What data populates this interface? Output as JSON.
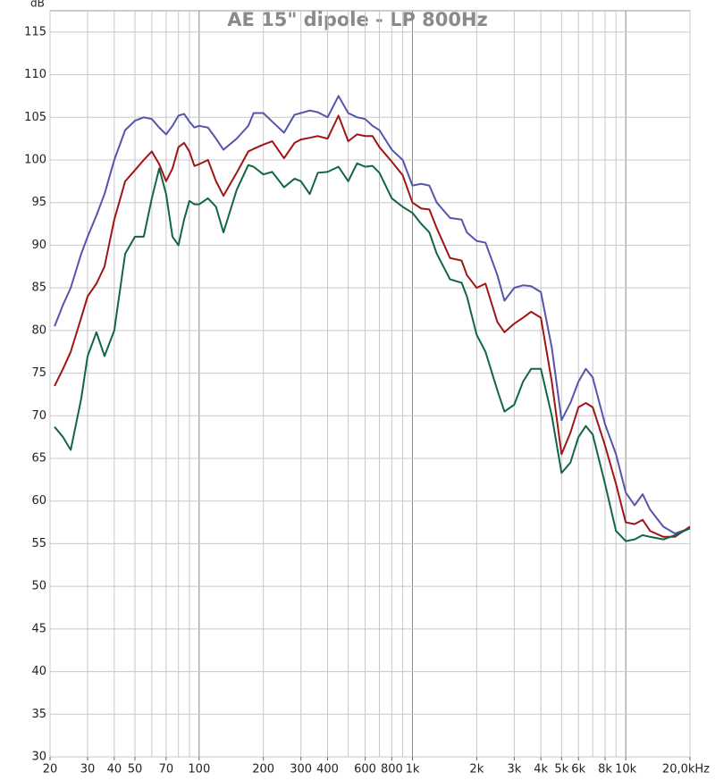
{
  "chart_data": {
    "type": "line",
    "title": "AE 15\" dipole - LP 800Hz",
    "ylabel": "dB",
    "xscale": "log",
    "grid": true,
    "xlim": [
      20,
      20000
    ],
    "ylim": [
      30,
      117.5
    ],
    "xticks": [
      20,
      30,
      40,
      50,
      70,
      100,
      200,
      300,
      400,
      600,
      800,
      {
        "value": 1000,
        "label": "1k"
      },
      {
        "value": 2000,
        "label": "2k"
      },
      {
        "value": 3000,
        "label": "3k"
      },
      {
        "value": 4000,
        "label": "4k"
      },
      {
        "value": 5000,
        "label": "5k"
      },
      {
        "value": 6000,
        "label": "6k"
      },
      {
        "value": 8000,
        "label": "8k"
      },
      {
        "value": 10000,
        "label": "10k"
      },
      {
        "value": 20000,
        "label": "20,0kHz"
      }
    ],
    "xgrid": [
      20,
      30,
      40,
      50,
      60,
      70,
      80,
      90,
      100,
      200,
      300,
      400,
      500,
      600,
      700,
      800,
      900,
      1000,
      2000,
      3000,
      4000,
      5000,
      6000,
      7000,
      8000,
      9000,
      10000,
      20000
    ],
    "yticks": [
      30,
      35,
      40,
      45,
      50,
      55,
      60,
      65,
      70,
      75,
      80,
      85,
      90,
      95,
      100,
      105,
      110,
      115
    ],
    "x": [
      21,
      23,
      25,
      28,
      30,
      33,
      36,
      40,
      45,
      50,
      55,
      60,
      65,
      70,
      75,
      80,
      85,
      90,
      95,
      100,
      110,
      120,
      130,
      150,
      170,
      180,
      200,
      220,
      250,
      280,
      300,
      330,
      360,
      400,
      450,
      500,
      550,
      600,
      650,
      700,
      800,
      900,
      1000,
      1100,
      1200,
      1300,
      1500,
      1700,
      1800,
      2000,
      2200,
      2500,
      2700,
      3000,
      3300,
      3600,
      4000,
      4500,
      5000,
      5500,
      6000,
      6500,
      7000,
      8000,
      9000,
      10000,
      11000,
      12000,
      13000,
      15000,
      17000,
      20000
    ],
    "series": [
      {
        "color": "#5555aa",
        "values": [
          80.5,
          83,
          85,
          89,
          91,
          93.5,
          96,
          100,
          103.5,
          104.6,
          105,
          104.8,
          103.8,
          103,
          104,
          105.2,
          105.4,
          104.5,
          103.8,
          104,
          103.8,
          102.5,
          101.2,
          102.5,
          104,
          105.5,
          105.5,
          104.5,
          103.2,
          105.3,
          105.5,
          105.8,
          105.6,
          105,
          107.5,
          105.5,
          105,
          104.8,
          104,
          103.5,
          101.2,
          100,
          97,
          97.2,
          97,
          95,
          93.2,
          93,
          91.5,
          90.5,
          90.3,
          86.5,
          83.5,
          85,
          85.3,
          85.2,
          84.5,
          78,
          69.5,
          71.5,
          74,
          75.5,
          74.5,
          69,
          65.5,
          61,
          59.5,
          60.8,
          59,
          57,
          56.2,
          56.8
        ]
      },
      {
        "color": "#a01515",
        "values": [
          73.5,
          75.5,
          77.5,
          81.5,
          84,
          85.5,
          87.5,
          93,
          97.5,
          98.8,
          100,
          101,
          99.5,
          97.5,
          99,
          101.5,
          102,
          101,
          99.3,
          99.5,
          100,
          97.5,
          95.8,
          98.5,
          101,
          101.3,
          101.8,
          102.2,
          100.2,
          102,
          102.4,
          102.6,
          102.8,
          102.5,
          105.2,
          102.2,
          103,
          102.8,
          102.8,
          101.5,
          99.8,
          98.2,
          95,
          94.3,
          94.2,
          92,
          88.5,
          88.2,
          86.5,
          85,
          85.5,
          81,
          79.8,
          80.8,
          81.5,
          82.2,
          81.5,
          74,
          65.5,
          68,
          71,
          71.5,
          71,
          66.5,
          62,
          57.5,
          57.3,
          57.8,
          56.5,
          55.8,
          55.8,
          57
        ]
      },
      {
        "color": "#116644",
        "values": [
          68.7,
          67.5,
          66,
          72,
          77,
          79.8,
          77,
          80,
          89,
          91,
          91,
          95.5,
          99,
          96,
          91,
          90,
          93,
          95.2,
          94.8,
          94.8,
          95.5,
          94.5,
          91.5,
          96.5,
          99.4,
          99.2,
          98.3,
          98.6,
          96.8,
          97.8,
          97.5,
          96,
          98.5,
          98.6,
          99.2,
          97.5,
          99.6,
          99.2,
          99.3,
          98.5,
          95.5,
          94.5,
          93.8,
          92.5,
          91.5,
          89,
          86,
          85.6,
          84,
          79.5,
          77.5,
          73,
          70.5,
          71.3,
          74,
          75.5,
          75.5,
          70,
          63.3,
          64.5,
          67.5,
          68.8,
          67.8,
          62,
          56.5,
          55.3,
          55.5,
          56,
          55.8,
          55.5,
          56,
          56.8
        ]
      }
    ]
  }
}
